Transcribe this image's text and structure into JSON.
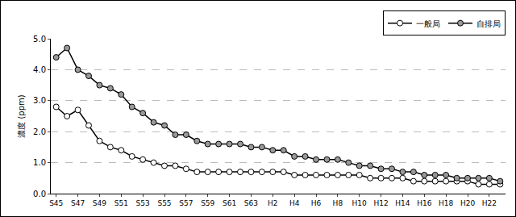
{
  "chart_data": {
    "type": "line",
    "y_label": "濃度 (ppm)",
    "categories": [
      "S45",
      null,
      "S47",
      null,
      "S49",
      null,
      "S51",
      null,
      "S53",
      null,
      "S55",
      null,
      "S57",
      null,
      "S59",
      null,
      "S61",
      null,
      "S63",
      null,
      "H2",
      null,
      "H4",
      null,
      "H6",
      null,
      "H8",
      null,
      "H10",
      null,
      "H12",
      null,
      "H14",
      null,
      "H16",
      null,
      "H18",
      null,
      "H20",
      null,
      "H22",
      null
    ],
    "series": [
      {
        "name": "一般局",
        "color": "#ffffff",
        "marker": "circle",
        "line_style": "solid",
        "values": [
          2.8,
          2.5,
          2.7,
          2.2,
          1.7,
          1.5,
          1.4,
          1.2,
          1.1,
          1.0,
          0.9,
          0.9,
          0.8,
          0.7,
          0.7,
          0.7,
          0.7,
          0.7,
          0.7,
          0.7,
          0.7,
          0.7,
          0.6,
          0.6,
          0.6,
          0.6,
          0.6,
          0.6,
          0.6,
          0.5,
          0.5,
          0.5,
          0.5,
          0.4,
          0.4,
          0.4,
          0.4,
          0.4,
          0.4,
          0.3,
          0.3,
          0.3
        ]
      },
      {
        "name": "自排局",
        "color": "#999999",
        "marker": "circle",
        "line_style": "solid",
        "values": [
          4.4,
          4.7,
          4.0,
          3.8,
          3.5,
          3.4,
          3.2,
          2.8,
          2.6,
          2.3,
          2.2,
          1.9,
          1.9,
          1.7,
          1.6,
          1.6,
          1.6,
          1.6,
          1.5,
          1.5,
          1.4,
          1.4,
          1.2,
          1.2,
          1.1,
          1.1,
          1.1,
          1.0,
          0.9,
          0.9,
          0.8,
          0.8,
          0.7,
          0.7,
          0.6,
          0.6,
          0.6,
          0.5,
          0.5,
          0.5,
          0.5,
          0.4
        ]
      }
    ],
    "ylim": [
      0,
      5
    ],
    "yticks": [
      {
        "value": 0,
        "label": "0.0"
      },
      {
        "value": 1,
        "label": "1.0"
      },
      {
        "value": 2,
        "label": "2.0"
      },
      {
        "value": 3,
        "label": "3.0"
      },
      {
        "value": 4,
        "label": "4.0"
      },
      {
        "value": 5,
        "label": "5.0"
      }
    ],
    "grid": true,
    "legend": "top right"
  }
}
